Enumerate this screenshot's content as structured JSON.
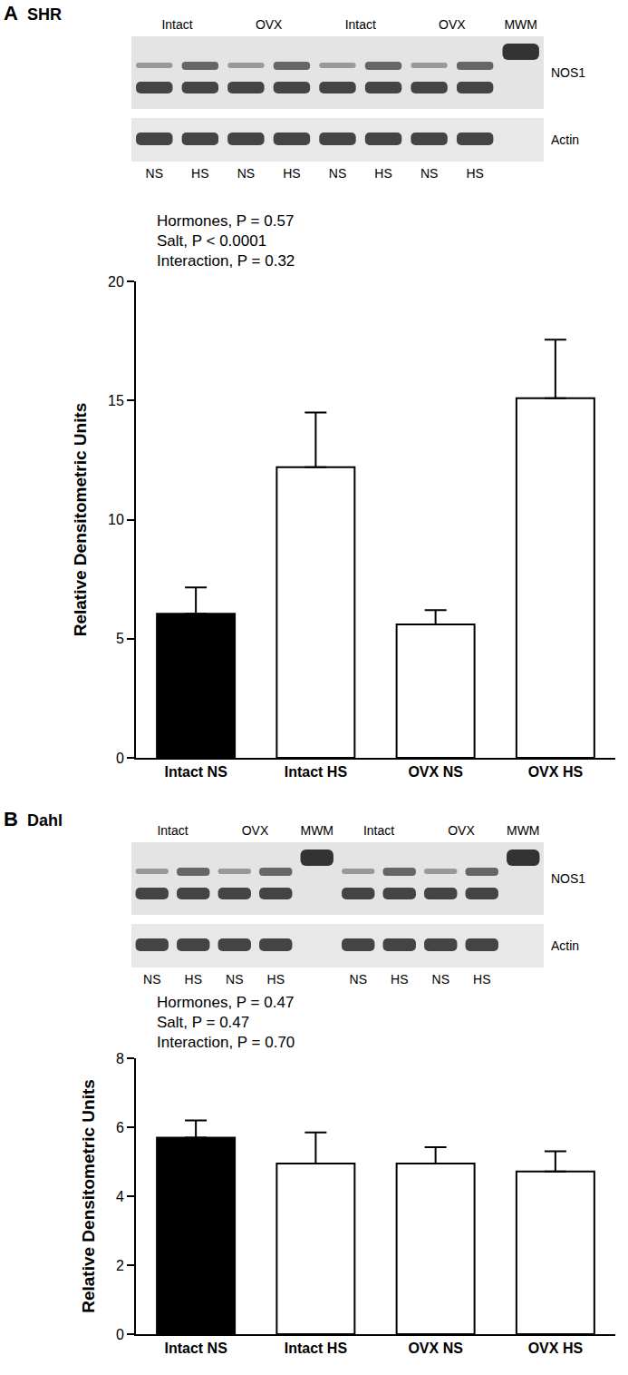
{
  "chart_data": [
    {
      "type": "bar",
      "panel": "A",
      "title": "SHR",
      "categories": [
        "Intact NS",
        "Intact HS",
        "OVX NS",
        "OVX HS"
      ],
      "values": [
        6.05,
        12.2,
        5.6,
        15.1
      ],
      "errors": [
        1.1,
        2.3,
        0.6,
        2.45
      ],
      "colors": [
        "#000000",
        "#ffffff",
        "#ffffff",
        "#ffffff"
      ],
      "y_label": "Relative Densitometric Units",
      "annotations": [
        "Hormones, P = 0.57",
        "Salt, P < 0.0001",
        "Interaction, P = 0.32"
      ],
      "ylim": [
        0,
        20
      ],
      "yticks": [
        0,
        5,
        10,
        15,
        20
      ],
      "grid": false,
      "blot": {
        "bands": [
          "NOS1",
          "Actin"
        ],
        "groups": [
          {
            "label": "Intact",
            "lanes": [
              "NS",
              "HS"
            ]
          },
          {
            "label": "OVX",
            "lanes": [
              "NS",
              "HS"
            ]
          },
          {
            "label": "Intact",
            "lanes": [
              "NS",
              "HS"
            ]
          },
          {
            "label": "OVX",
            "lanes": [
              "NS",
              "HS"
            ]
          },
          {
            "label": "MWM",
            "lanes": [
              null
            ]
          }
        ]
      }
    },
    {
      "type": "bar",
      "panel": "B",
      "title": "Dahl",
      "categories": [
        "Intact NS",
        "Intact HS",
        "OVX NS",
        "OVX HS"
      ],
      "values": [
        5.7,
        4.95,
        4.95,
        4.72
      ],
      "errors": [
        0.5,
        0.9,
        0.47,
        0.58
      ],
      "colors": [
        "#000000",
        "#ffffff",
        "#ffffff",
        "#ffffff"
      ],
      "y_label": "Relative Densitometric Units",
      "annotations": [
        "Hormones, P = 0.47",
        "Salt, P = 0.47",
        "Interaction, P = 0.70"
      ],
      "ylim": [
        0,
        8
      ],
      "yticks": [
        0,
        2,
        4,
        6,
        8
      ],
      "grid": false,
      "blot": {
        "bands": [
          "NOS1",
          "Actin"
        ],
        "groups": [
          {
            "label": "Intact",
            "lanes": [
              "NS",
              "HS"
            ]
          },
          {
            "label": "OVX",
            "lanes": [
              "NS",
              "HS"
            ]
          },
          {
            "label": "MWM",
            "lanes": [
              null
            ]
          },
          {
            "label": "Intact",
            "lanes": [
              "NS",
              "HS"
            ]
          },
          {
            "label": "OVX",
            "lanes": [
              "NS",
              "HS"
            ]
          },
          {
            "label": "MWM",
            "lanes": [
              null
            ]
          }
        ]
      }
    }
  ]
}
